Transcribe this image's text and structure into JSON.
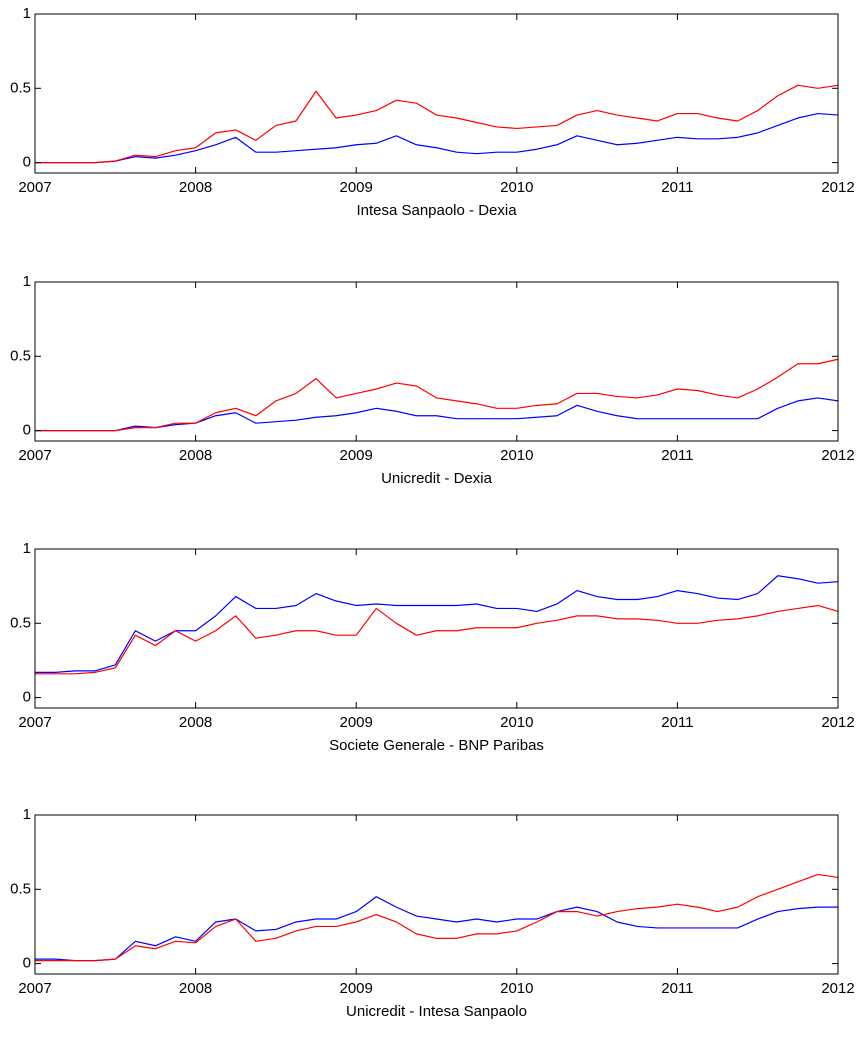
{
  "chart_data": [
    {
      "type": "line",
      "xlabel": "Intesa Sanpaolo - Dexia",
      "x": [
        2007,
        2007.125,
        2007.25,
        2007.375,
        2007.5,
        2007.625,
        2007.75,
        2007.875,
        2008,
        2008.125,
        2008.25,
        2008.375,
        2008.5,
        2008.625,
        2008.75,
        2008.875,
        2009,
        2009.125,
        2009.25,
        2009.375,
        2009.5,
        2009.625,
        2009.75,
        2009.875,
        2010,
        2010.125,
        2010.25,
        2010.375,
        2010.5,
        2010.625,
        2010.75,
        2010.875,
        2011,
        2011.125,
        2011.25,
        2011.375,
        2011.5,
        2011.625,
        2011.75,
        2011.875,
        2012
      ],
      "series": [
        {
          "color": "#0000ff",
          "values": [
            0,
            0,
            0,
            0,
            0.01,
            0.04,
            0.03,
            0.05,
            0.08,
            0.12,
            0.17,
            0.07,
            0.07,
            0.08,
            0.09,
            0.1,
            0.12,
            0.13,
            0.18,
            0.12,
            0.1,
            0.07,
            0.06,
            0.07,
            0.07,
            0.09,
            0.12,
            0.18,
            0.15,
            0.12,
            0.13,
            0.15,
            0.17,
            0.16,
            0.16,
            0.17,
            0.2,
            0.25,
            0.3,
            0.33,
            0.32
          ]
        },
        {
          "color": "#ff0000",
          "values": [
            0,
            0,
            0,
            0,
            0.01,
            0.05,
            0.04,
            0.08,
            0.1,
            0.2,
            0.22,
            0.15,
            0.25,
            0.28,
            0.48,
            0.3,
            0.32,
            0.35,
            0.42,
            0.4,
            0.32,
            0.3,
            0.27,
            0.24,
            0.23,
            0.24,
            0.25,
            0.32,
            0.35,
            0.32,
            0.3,
            0.28,
            0.33,
            0.33,
            0.3,
            0.28,
            0.35,
            0.45,
            0.52,
            0.5,
            0.52
          ]
        }
      ],
      "xlim": [
        2007,
        2012
      ],
      "xticks": [
        2007,
        2008,
        2009,
        2010,
        2011,
        2012
      ],
      "ylim": [
        -0.07,
        1
      ],
      "yticks": [
        0,
        0.5,
        1
      ]
    },
    {
      "type": "line",
      "xlabel": "Unicredit - Dexia",
      "x": [
        2007,
        2007.125,
        2007.25,
        2007.375,
        2007.5,
        2007.625,
        2007.75,
        2007.875,
        2008,
        2008.125,
        2008.25,
        2008.375,
        2008.5,
        2008.625,
        2008.75,
        2008.875,
        2009,
        2009.125,
        2009.25,
        2009.375,
        2009.5,
        2009.625,
        2009.75,
        2009.875,
        2010,
        2010.125,
        2010.25,
        2010.375,
        2010.5,
        2010.625,
        2010.75,
        2010.875,
        2011,
        2011.125,
        2011.25,
        2011.375,
        2011.5,
        2011.625,
        2011.75,
        2011.875,
        2012
      ],
      "series": [
        {
          "color": "#0000ff",
          "values": [
            0,
            0,
            0,
            0,
            0,
            0.03,
            0.02,
            0.04,
            0.05,
            0.1,
            0.12,
            0.05,
            0.06,
            0.07,
            0.09,
            0.1,
            0.12,
            0.15,
            0.13,
            0.1,
            0.1,
            0.08,
            0.08,
            0.08,
            0.08,
            0.09,
            0.1,
            0.17,
            0.13,
            0.1,
            0.08,
            0.08,
            0.08,
            0.08,
            0.08,
            0.08,
            0.08,
            0.15,
            0.2,
            0.22,
            0.2
          ]
        },
        {
          "color": "#ff0000",
          "values": [
            0,
            0,
            0,
            0,
            0,
            0.02,
            0.02,
            0.05,
            0.05,
            0.12,
            0.15,
            0.1,
            0.2,
            0.25,
            0.35,
            0.22,
            0.25,
            0.28,
            0.32,
            0.3,
            0.22,
            0.2,
            0.18,
            0.15,
            0.15,
            0.17,
            0.18,
            0.25,
            0.25,
            0.23,
            0.22,
            0.24,
            0.28,
            0.27,
            0.24,
            0.22,
            0.28,
            0.36,
            0.45,
            0.45,
            0.48
          ]
        }
      ],
      "xlim": [
        2007,
        2012
      ],
      "xticks": [
        2007,
        2008,
        2009,
        2010,
        2011,
        2012
      ],
      "ylim": [
        -0.07,
        1
      ],
      "yticks": [
        0,
        0.5,
        1
      ]
    },
    {
      "type": "line",
      "xlabel": "Societe Generale - BNP Paribas",
      "x": [
        2007,
        2007.125,
        2007.25,
        2007.375,
        2007.5,
        2007.625,
        2007.75,
        2007.875,
        2008,
        2008.125,
        2008.25,
        2008.375,
        2008.5,
        2008.625,
        2008.75,
        2008.875,
        2009,
        2009.125,
        2009.25,
        2009.375,
        2009.5,
        2009.625,
        2009.75,
        2009.875,
        2010,
        2010.125,
        2010.25,
        2010.375,
        2010.5,
        2010.625,
        2010.75,
        2010.875,
        2011,
        2011.125,
        2011.25,
        2011.375,
        2011.5,
        2011.625,
        2011.75,
        2011.875,
        2012
      ],
      "series": [
        {
          "color": "#0000ff",
          "values": [
            0.17,
            0.17,
            0.18,
            0.18,
            0.22,
            0.45,
            0.38,
            0.45,
            0.45,
            0.55,
            0.68,
            0.6,
            0.6,
            0.62,
            0.7,
            0.65,
            0.62,
            0.63,
            0.62,
            0.62,
            0.62,
            0.62,
            0.63,
            0.6,
            0.6,
            0.58,
            0.63,
            0.72,
            0.68,
            0.66,
            0.66,
            0.68,
            0.72,
            0.7,
            0.67,
            0.66,
            0.7,
            0.82,
            0.8,
            0.77,
            0.78
          ]
        },
        {
          "color": "#ff0000",
          "values": [
            0.16,
            0.16,
            0.16,
            0.17,
            0.2,
            0.42,
            0.35,
            0.45,
            0.38,
            0.45,
            0.55,
            0.4,
            0.42,
            0.45,
            0.45,
            0.42,
            0.42,
            0.6,
            0.5,
            0.42,
            0.45,
            0.45,
            0.47,
            0.47,
            0.47,
            0.5,
            0.52,
            0.55,
            0.55,
            0.53,
            0.53,
            0.52,
            0.5,
            0.5,
            0.52,
            0.53,
            0.55,
            0.58,
            0.6,
            0.62,
            0.58
          ]
        }
      ],
      "xlim": [
        2007,
        2012
      ],
      "xticks": [
        2007,
        2008,
        2009,
        2010,
        2011,
        2012
      ],
      "ylim": [
        -0.07,
        1
      ],
      "yticks": [
        0,
        0.5,
        1
      ]
    },
    {
      "type": "line",
      "xlabel": "Unicredit - Intesa Sanpaolo",
      "x": [
        2007,
        2007.125,
        2007.25,
        2007.375,
        2007.5,
        2007.625,
        2007.75,
        2007.875,
        2008,
        2008.125,
        2008.25,
        2008.375,
        2008.5,
        2008.625,
        2008.75,
        2008.875,
        2009,
        2009.125,
        2009.25,
        2009.375,
        2009.5,
        2009.625,
        2009.75,
        2009.875,
        2010,
        2010.125,
        2010.25,
        2010.375,
        2010.5,
        2010.625,
        2010.75,
        2010.875,
        2011,
        2011.125,
        2011.25,
        2011.375,
        2011.5,
        2011.625,
        2011.75,
        2011.875,
        2012
      ],
      "series": [
        {
          "color": "#0000ff",
          "values": [
            0.03,
            0.03,
            0.02,
            0.02,
            0.03,
            0.15,
            0.12,
            0.18,
            0.15,
            0.28,
            0.3,
            0.22,
            0.23,
            0.28,
            0.3,
            0.3,
            0.35,
            0.45,
            0.38,
            0.32,
            0.3,
            0.28,
            0.3,
            0.28,
            0.3,
            0.3,
            0.35,
            0.38,
            0.35,
            0.28,
            0.25,
            0.24,
            0.24,
            0.24,
            0.24,
            0.24,
            0.3,
            0.35,
            0.37,
            0.38,
            0.38
          ]
        },
        {
          "color": "#ff0000",
          "values": [
            0.02,
            0.02,
            0.02,
            0.02,
            0.03,
            0.12,
            0.1,
            0.15,
            0.14,
            0.25,
            0.3,
            0.15,
            0.17,
            0.22,
            0.25,
            0.25,
            0.28,
            0.33,
            0.28,
            0.2,
            0.17,
            0.17,
            0.2,
            0.2,
            0.22,
            0.28,
            0.35,
            0.35,
            0.32,
            0.35,
            0.37,
            0.38,
            0.4,
            0.38,
            0.35,
            0.38,
            0.45,
            0.5,
            0.55,
            0.6,
            0.58
          ]
        }
      ],
      "xlim": [
        2007,
        2012
      ],
      "xticks": [
        2007,
        2008,
        2009,
        2010,
        2011,
        2012
      ],
      "ylim": [
        -0.07,
        1
      ],
      "yticks": [
        0,
        0.5,
        1
      ]
    }
  ]
}
